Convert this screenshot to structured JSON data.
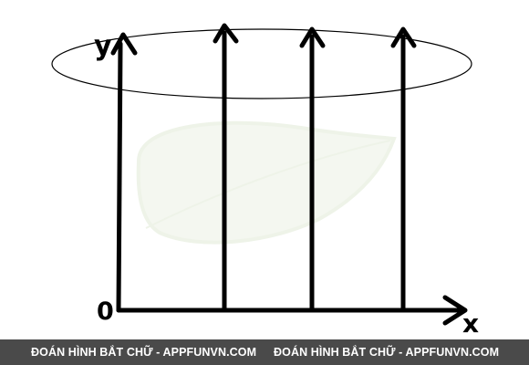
{
  "diagram": {
    "y_axis_label": "y",
    "x_axis_label": "x",
    "origin_label": "0",
    "ink_color": "#000000",
    "watermark_color": "#eef3e8"
  },
  "footer": {
    "background": "#4a4a4a",
    "text_left": "ĐOÁN HÌNH BẮT CHỮ - APPFUNVN.COM",
    "text_right": "ĐOÁN HÌNH BẮT CHỮ - APPFUNVN.COM"
  }
}
